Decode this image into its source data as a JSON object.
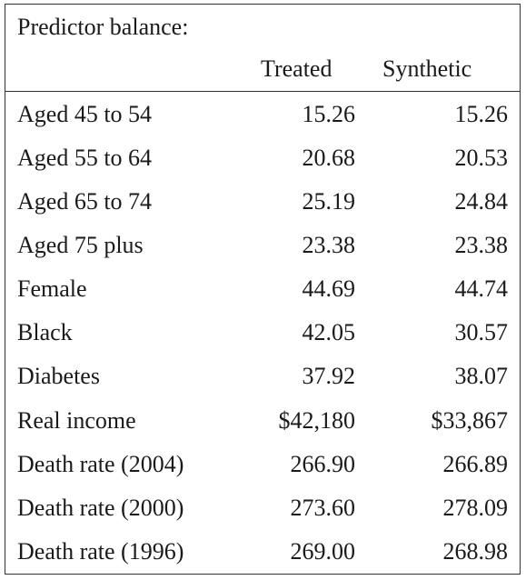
{
  "table": {
    "caption": "Predictor balance:",
    "columns": [
      "Treated",
      "Synthetic"
    ],
    "rows": [
      {
        "label": "Aged 45 to 54",
        "treated": "15.26",
        "synthetic": "15.26"
      },
      {
        "label": "Aged 55 to 64",
        "treated": "20.68",
        "synthetic": "20.53"
      },
      {
        "label": "Aged 65 to 74",
        "treated": "25.19",
        "synthetic": "24.84"
      },
      {
        "label": "Aged 75 plus",
        "treated": "23.38",
        "synthetic": "23.38"
      },
      {
        "label": "Female",
        "treated": "44.69",
        "synthetic": "44.74"
      },
      {
        "label": "Black",
        "treated": "42.05",
        "synthetic": "30.57"
      },
      {
        "label": "Diabetes",
        "treated": "37.92",
        "synthetic": "38.07"
      },
      {
        "label": "Real income",
        "treated": "$42,180",
        "synthetic": "$33,867"
      },
      {
        "label": "Death rate (2004)",
        "treated": "266.90",
        "synthetic": "266.89"
      },
      {
        "label": "Death rate (2000)",
        "treated": "273.60",
        "synthetic": "278.09"
      },
      {
        "label": "Death rate (1996)",
        "treated": "269.00",
        "synthetic": "268.98"
      }
    ]
  }
}
